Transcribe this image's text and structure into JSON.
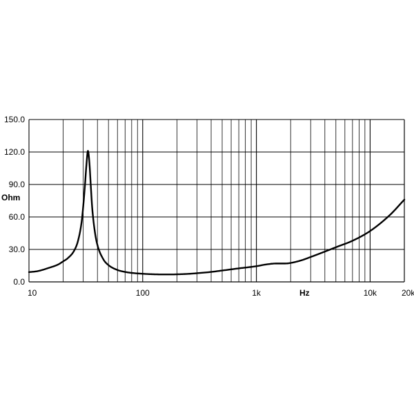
{
  "chart_data": {
    "type": "line",
    "title": "",
    "xlabel": "Hz",
    "ylabel": "Ohm",
    "x_scale": "log",
    "xlim": [
      10,
      20000
    ],
    "ylim": [
      0,
      150
    ],
    "grid": true,
    "x_major_ticks": [
      10,
      100,
      1000,
      10000,
      20000
    ],
    "x_tick_labels": [
      "10",
      "100",
      "1k",
      "10k",
      "20k"
    ],
    "y_ticks": [
      0,
      30,
      60,
      90,
      120,
      150
    ],
    "y_tick_labels": [
      "0.0",
      "30.0",
      "60.0",
      "90.0",
      "120.0",
      "150.0"
    ],
    "series": [
      {
        "color": "#000000",
        "x": [
          10,
          12,
          15,
          18,
          20,
          22,
          25,
          27,
          29,
          30,
          31,
          32,
          33,
          34,
          35,
          36,
          38,
          40,
          45,
          50,
          60,
          70,
          80,
          100,
          120,
          150,
          180,
          200,
          250,
          300,
          400,
          500,
          700,
          1000,
          1200,
          1500,
          1800,
          2000,
          2500,
          3000,
          4000,
          5000,
          7000,
          10000,
          15000,
          20000
        ],
        "y": [
          9,
          10,
          13,
          16,
          19,
          22,
          29,
          38,
          55,
          70,
          88,
          108,
          121,
          110,
          88,
          68,
          46,
          34,
          21,
          15.5,
          11,
          9.2,
          8.3,
          7.5,
          7.1,
          6.9,
          6.9,
          7.0,
          7.4,
          8.0,
          9.2,
          10.5,
          12.5,
          14.5,
          16,
          17,
          17,
          17.5,
          20,
          23,
          28,
          32,
          38,
          47,
          62,
          76
        ]
      }
    ]
  }
}
